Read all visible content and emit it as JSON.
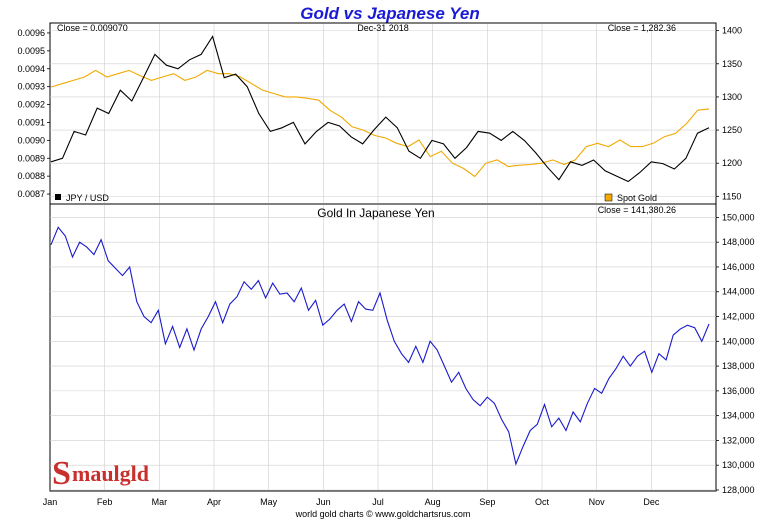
{
  "chart_data": [
    {
      "type": "line",
      "title": "Gold vs Japanese Yen",
      "date_label": "Dec-31  2018",
      "left_close_label": "Close = 0.009070",
      "right_close_label": "Close = 1,282.36",
      "ylim_left": [
        0.00865,
        0.00965
      ],
      "ylim_right": [
        1140,
        1410
      ],
      "left_ticks": [
        "0.0096",
        "0.0095",
        "0.0094",
        "0.0093",
        "0.0092",
        "0.0091",
        "0.0090",
        "0.0089",
        "0.0088",
        "0.0087"
      ],
      "left_tick_values": [
        0.0096,
        0.0095,
        0.0094,
        0.0093,
        0.0092,
        0.0091,
        0.009,
        0.0089,
        0.0088,
        0.0087
      ],
      "right_ticks": [
        "1400",
        "1350",
        "1300",
        "1250",
        "1200",
        "1150"
      ],
      "right_tick_values": [
        1400,
        1350,
        1300,
        1250,
        1200,
        1150
      ],
      "series": [
        {
          "name": "JPY / USD",
          "color": "#000000",
          "axis": "left",
          "values": [
            0.00888,
            0.0089,
            0.00905,
            0.00903,
            0.00918,
            0.00915,
            0.00928,
            0.00922,
            0.00935,
            0.00948,
            0.00942,
            0.0094,
            0.00945,
            0.00948,
            0.00958,
            0.00935,
            0.00937,
            0.0093,
            0.00915,
            0.00905,
            0.00907,
            0.0091,
            0.00898,
            0.00905,
            0.0091,
            0.00908,
            0.00902,
            0.00898,
            0.00906,
            0.00913,
            0.00907,
            0.00894,
            0.0089,
            0.009,
            0.00898,
            0.0089,
            0.00896,
            0.00905,
            0.00904,
            0.009,
            0.00905,
            0.009,
            0.00893,
            0.00885,
            0.00878,
            0.00888,
            0.00886,
            0.00889,
            0.00883,
            0.0088,
            0.00877,
            0.00882,
            0.00888,
            0.00887,
            0.00884,
            0.0089,
            0.00904,
            0.00907
          ]
        },
        {
          "name": "Spot Gold",
          "color": "#f2a900",
          "axis": "right",
          "values": [
            1315,
            1320,
            1325,
            1330,
            1340,
            1330,
            1335,
            1340,
            1332,
            1325,
            1330,
            1335,
            1325,
            1330,
            1340,
            1335,
            1335,
            1330,
            1320,
            1310,
            1305,
            1300,
            1300,
            1298,
            1295,
            1280,
            1270,
            1255,
            1250,
            1242,
            1238,
            1230,
            1225,
            1235,
            1210,
            1218,
            1200,
            1192,
            1180,
            1200,
            1205,
            1195,
            1197,
            1198,
            1200,
            1205,
            1198,
            1205,
            1225,
            1230,
            1225,
            1235,
            1225,
            1225,
            1230,
            1240,
            1245,
            1260,
            1280,
            1282
          ]
        }
      ],
      "legend": [
        {
          "label": "JPY / USD",
          "color": "#000000",
          "position": "bottom-left"
        },
        {
          "label": "Spot Gold",
          "color": "#f2a900",
          "position": "bottom-right"
        }
      ]
    },
    {
      "type": "line",
      "title": "Gold In Japanese Yen",
      "close_label": "Close = 141,380.26",
      "ylim": [
        128000,
        151000
      ],
      "y_ticks": [
        "150,000",
        "148,000",
        "146,000",
        "144,000",
        "142,000",
        "140,000",
        "138,000",
        "136,000",
        "134,000",
        "132,000",
        "130,000",
        "128,000"
      ],
      "y_tick_values": [
        150000,
        148000,
        146000,
        144000,
        142000,
        140000,
        138000,
        136000,
        134000,
        132000,
        130000,
        128000
      ],
      "series": [
        {
          "name": "Gold In Japanese Yen",
          "color": "#1a1acc",
          "values": [
            147800,
            149200,
            148500,
            146800,
            148000,
            147600,
            147000,
            148200,
            146500,
            145900,
            145300,
            146000,
            143200,
            142000,
            141500,
            142500,
            139800,
            141200,
            139500,
            141000,
            139300,
            141000,
            142000,
            143200,
            141500,
            143000,
            143600,
            144800,
            144200,
            144900,
            143500,
            144700,
            143800,
            143900,
            143200,
            144300,
            142500,
            143300,
            141300,
            141800,
            142500,
            143000,
            141600,
            143200,
            142600,
            142500,
            143900,
            141700,
            140000,
            139000,
            138300,
            139600,
            138300,
            140000,
            139300,
            138000,
            136700,
            137500,
            136200,
            135300,
            134800,
            135500,
            135000,
            133700,
            132700,
            130100,
            131500,
            132800,
            133300,
            134900,
            133100,
            133800,
            132800,
            134300,
            133500,
            135000,
            136200,
            135800,
            137000,
            137800,
            138800,
            138000,
            138800,
            139200,
            137500,
            139000,
            138500,
            140500,
            141000,
            141300,
            141100,
            140000,
            141400
          ]
        }
      ]
    }
  ],
  "x_axis": {
    "categories": [
      "Jan",
      "Feb",
      "Mar",
      "Apr",
      "May",
      "Jun",
      "Jul",
      "Aug",
      "Sep",
      "Oct",
      "Nov",
      "Dec"
    ]
  },
  "footer": "world gold charts © www.goldchartsrus.com",
  "logo": {
    "text": "Smaulgld",
    "first_letter": "S",
    "rest": "maulgld",
    "color": "#c9302c"
  },
  "colors": {
    "grid": "#cfcfcf",
    "border": "#000000",
    "background": "#ffffff"
  }
}
